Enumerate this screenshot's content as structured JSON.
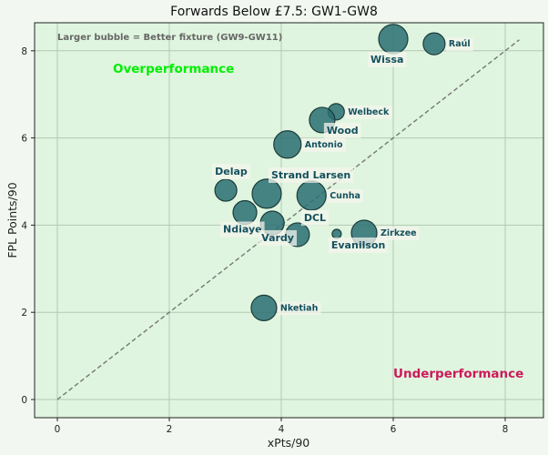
{
  "chart_data": {
    "type": "scatter",
    "title": "Forwards Below £7.5: GW1-GW8",
    "xlabel": "xPts/90",
    "ylabel": "FPL Points/90",
    "xlim": [
      -0.4,
      8.7
    ],
    "ylim": [
      -0.4,
      8.7
    ],
    "xticks": [
      0,
      2,
      4,
      6,
      8
    ],
    "yticks": [
      0,
      2,
      4,
      6,
      8
    ],
    "grid": true,
    "subtitle_note": "Larger bubble = Better fixture (GW9-GW11)",
    "annotations": {
      "over": {
        "text": "Overperformance",
        "color": "#00ee00"
      },
      "under": {
        "text": "Underperformance",
        "color": "#cc1a5a"
      }
    },
    "reference_line": {
      "from": [
        0,
        0
      ],
      "to": [
        8.25,
        8.25
      ],
      "style": "dashed"
    },
    "bubble_color": "#2a6f73",
    "points": [
      {
        "name": "Wissa",
        "x": 6.0,
        "y": 8.27,
        "size": 16,
        "label_pos": "below"
      },
      {
        "name": "Raúl",
        "x": 6.73,
        "y": 8.16,
        "size": 12,
        "label_pos": "right"
      },
      {
        "name": "Welbeck",
        "x": 4.98,
        "y": 6.6,
        "size": 9,
        "label_pos": "right"
      },
      {
        "name": "Wood",
        "x": 4.73,
        "y": 6.41,
        "size": 14,
        "label_pos": "below-right"
      },
      {
        "name": "Antonio",
        "x": 4.11,
        "y": 5.85,
        "size": 15,
        "label_pos": "right"
      },
      {
        "name": "Delap",
        "x": 3.01,
        "y": 4.8,
        "size": 12,
        "label_pos": "above"
      },
      {
        "name": "Strand Larsen",
        "x": 3.74,
        "y": 4.72,
        "size": 16,
        "label_pos": "above-right"
      },
      {
        "name": "Cunha",
        "x": 4.54,
        "y": 4.68,
        "size": 16,
        "label_pos": "right"
      },
      {
        "name": "Ndiaye",
        "x": 3.35,
        "y": 4.29,
        "size": 13,
        "label_pos": "below-left"
      },
      {
        "name": "Vardy",
        "x": 3.84,
        "y": 4.05,
        "size": 13,
        "label_pos": "below"
      },
      {
        "name": "DCL",
        "x": 4.29,
        "y": 3.78,
        "size": 13,
        "label_pos": "above-right"
      },
      {
        "name": "Evanilson",
        "x": 4.99,
        "y": 3.8,
        "size": 5,
        "label_pos": "below"
      },
      {
        "name": "Zirkzee",
        "x": 5.48,
        "y": 3.82,
        "size": 14,
        "label_pos": "right"
      },
      {
        "name": "Nketiah",
        "x": 3.69,
        "y": 2.1,
        "size": 14,
        "label_pos": "right"
      }
    ]
  }
}
